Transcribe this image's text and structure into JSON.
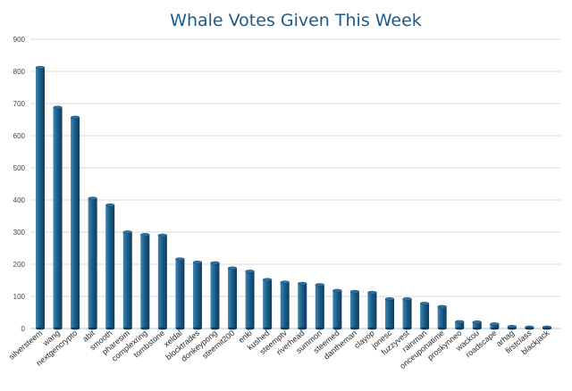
{
  "chart_data": {
    "type": "bar",
    "title": "Whale Votes Given This Week",
    "xlabel": "",
    "ylabel": "",
    "ylim": [
      0,
      900
    ],
    "yticks": [
      0,
      100,
      200,
      300,
      400,
      500,
      600,
      700,
      800,
      900
    ],
    "grid": true,
    "legend": "none",
    "bar_style": "3d-cylinder",
    "colors": {
      "bar": "#1e5f8c",
      "bar_dark": "#0f3a5a",
      "bar_light": "#3e86b8",
      "bar_top": "#2b73a4",
      "title": "#1f5a86"
    },
    "categories": [
      "silversteem",
      "wang",
      "nextgencrypto",
      "abit",
      "smooth",
      "pharesim",
      "complexring",
      "tombstone",
      "xeldal",
      "blocktrades",
      "donkeypong",
      "steemit200",
      "enki",
      "kushed",
      "steemptv",
      "riverhead",
      "summon",
      "steemed",
      "dantheman",
      "clayop",
      "jonesc",
      "fuzzyvest",
      "rainman",
      "onceuponatime",
      "proskynneo",
      "wackou",
      "roadscape",
      "arhag",
      "firstclass",
      "blackjack"
    ],
    "values": [
      812,
      688,
      657,
      405,
      384,
      300,
      292,
      290,
      216,
      206,
      204,
      188,
      178,
      152,
      144,
      140,
      136,
      118,
      115,
      112,
      92,
      92,
      78,
      68,
      21,
      20,
      14,
      6,
      4,
      4
    ]
  }
}
